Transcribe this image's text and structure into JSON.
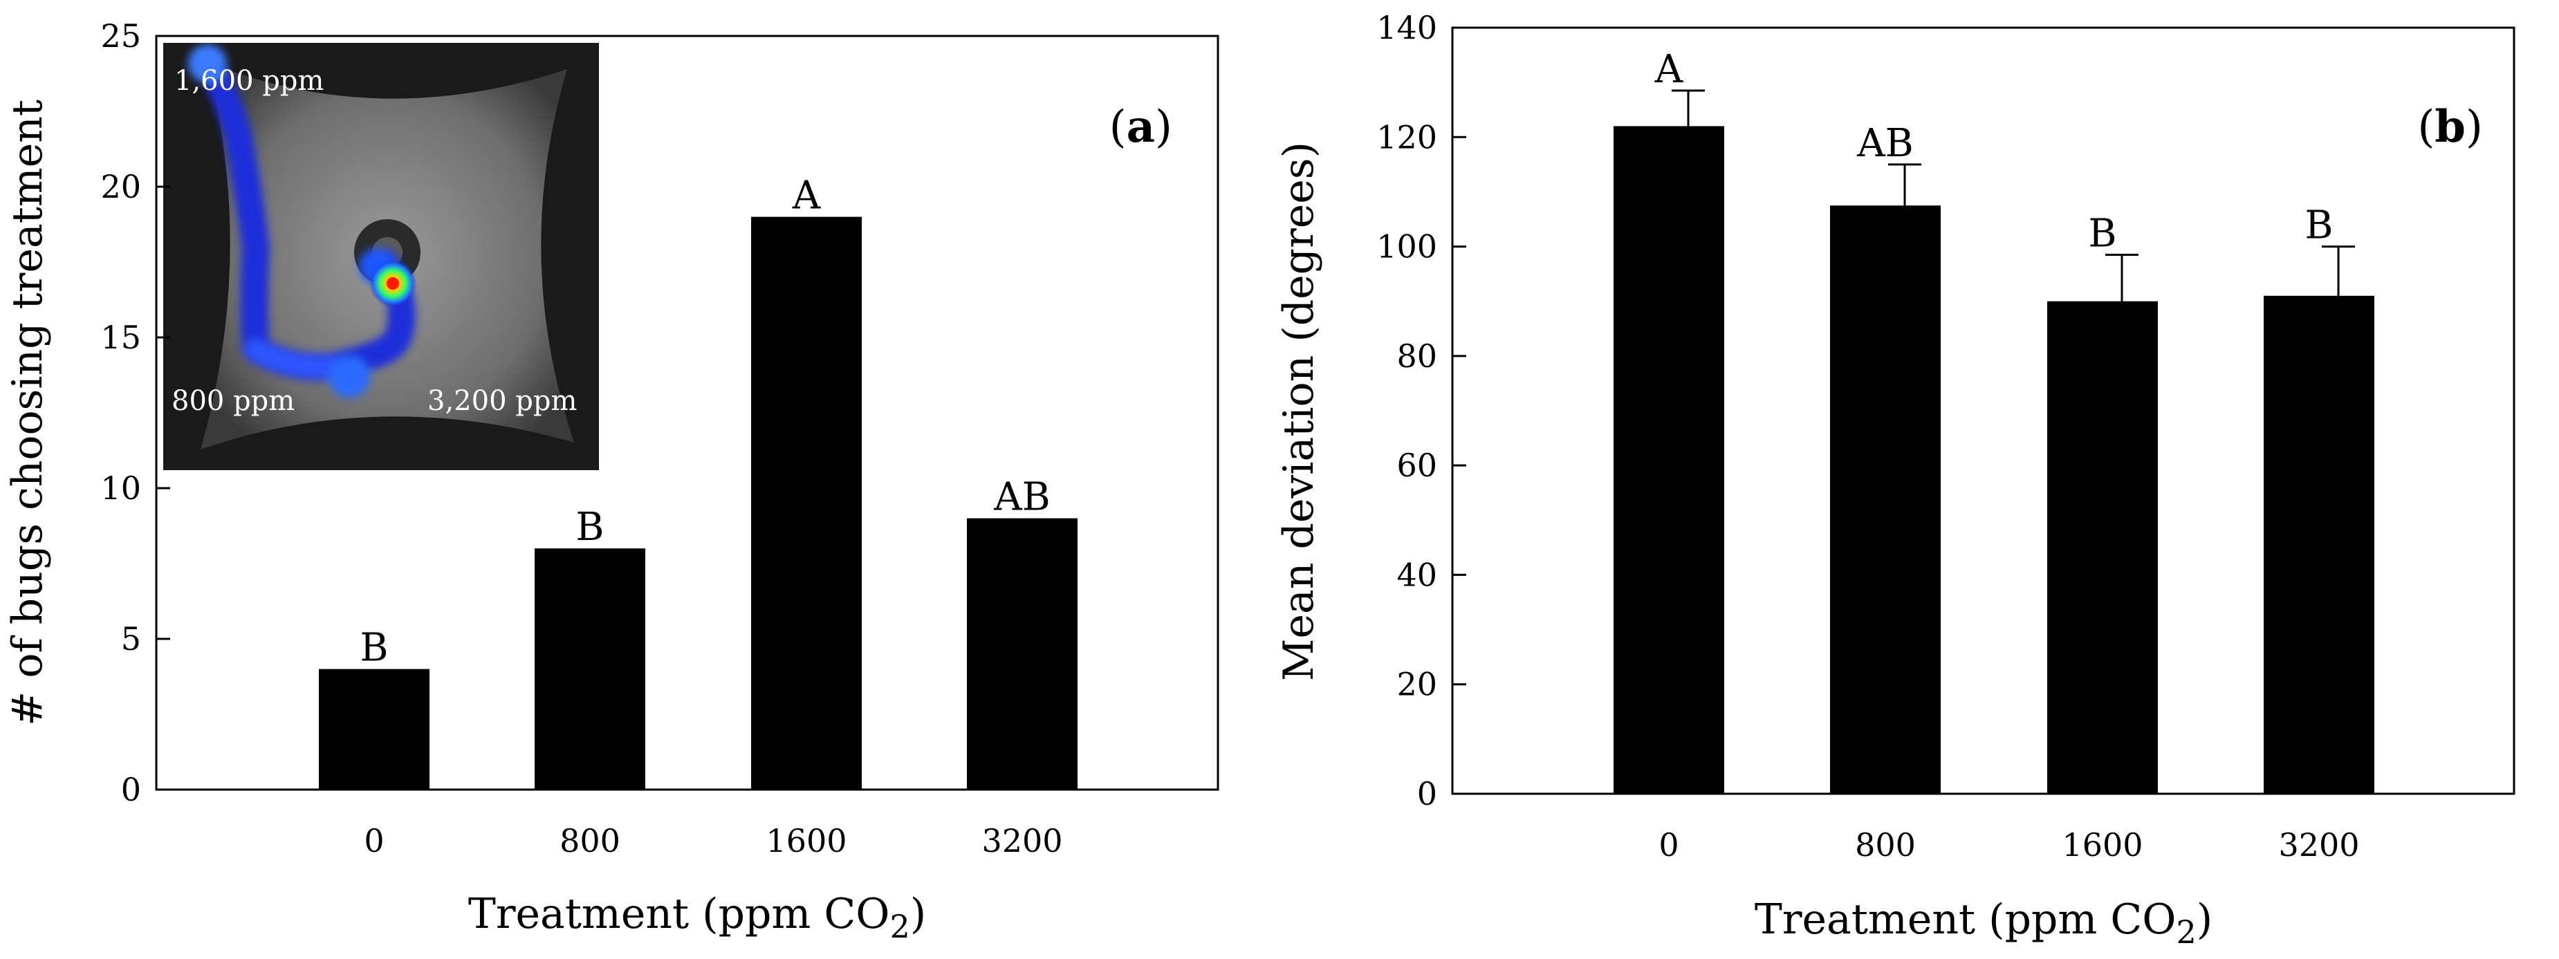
{
  "chart_data": [
    {
      "panel": "(a)",
      "panel_label_open": "(",
      "panel_label_letter": "a",
      "panel_label_close": ")",
      "type": "bar",
      "categories": [
        "0",
        "800",
        "1600",
        "3200"
      ],
      "values": [
        4,
        8,
        19,
        9
      ],
      "significance_letters": [
        "B",
        "B",
        "A",
        "AB"
      ],
      "ylabel": "# of bugs choosing treatment",
      "xlabel_main": "Treatment (ppm CO",
      "xlabel_sub": "2",
      "xlabel_end": ")",
      "ylim": [
        0,
        25
      ],
      "yticks": [
        0,
        5,
        10,
        15,
        20,
        25
      ],
      "grid": false,
      "legend": "none",
      "bar_color": "#000000",
      "inset": {
        "description": "heat-map track of bug movement in arena",
        "labels": [
          "1,600 ppm",
          "800 ppm",
          "3,200 ppm"
        ]
      }
    },
    {
      "panel": "(b)",
      "panel_label_open": "(",
      "panel_label_letter": "b",
      "panel_label_close": ")",
      "type": "bar",
      "categories": [
        "0",
        "800",
        "1600",
        "3200"
      ],
      "values": [
        122,
        107.5,
        90,
        91
      ],
      "errors": [
        6.5,
        7.5,
        8.5,
        9
      ],
      "significance_letters": [
        "A",
        "AB",
        "B",
        "B"
      ],
      "ylabel": "Mean deviation (degrees)",
      "xlabel_main": "Treatment (ppm CO",
      "xlabel_sub": "2",
      "xlabel_end": ")",
      "ylim": [
        0,
        140
      ],
      "yticks": [
        0,
        20,
        40,
        60,
        80,
        100,
        120,
        140
      ],
      "grid": false,
      "legend": "none",
      "bar_color": "#000000"
    }
  ]
}
